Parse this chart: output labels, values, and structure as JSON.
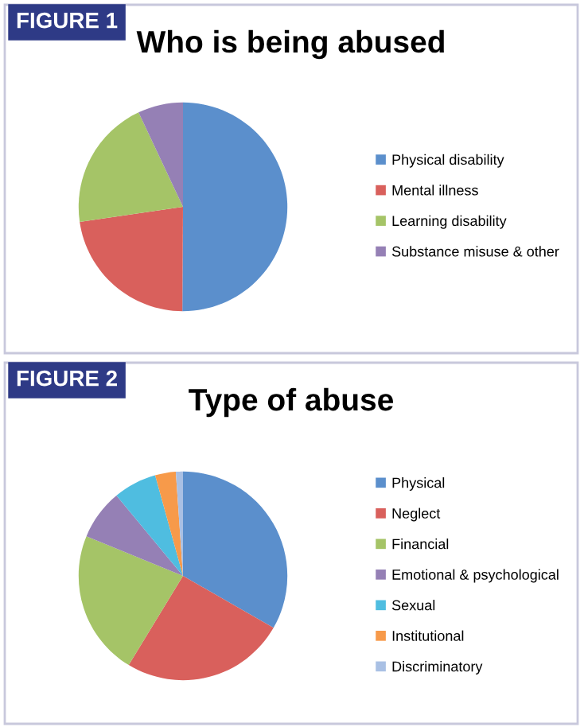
{
  "chart_data": [
    {
      "type": "pie",
      "title": "Who is being abused",
      "annotations": [
        "FIGURE 1"
      ],
      "legend": "right",
      "categories": [
        "Physical disability",
        "Mental illness",
        "Learning disability",
        "Substance misuse & other"
      ],
      "values": [
        50.1,
        22.6,
        20.3,
        7.0
      ],
      "colors": [
        "#5b8fcc",
        "#d9605c",
        "#a5c467",
        "#9580b5"
      ]
    },
    {
      "type": "pie",
      "title": "Type of abuse",
      "annotations": [
        "FIGURE 2"
      ],
      "legend": "right",
      "categories": [
        "Physical",
        "Neglect",
        "Financial",
        "Emotional & psychological",
        "Sexual",
        "Institutional",
        "Discriminatory"
      ],
      "values": [
        33.3,
        25.4,
        22.5,
        7.8,
        6.7,
        3.2,
        1.1
      ],
      "colors": [
        "#5b8fcc",
        "#d9605c",
        "#a5c467",
        "#9580b5",
        "#4fbde0",
        "#f79a4a",
        "#a9c0e4"
      ]
    }
  ]
}
